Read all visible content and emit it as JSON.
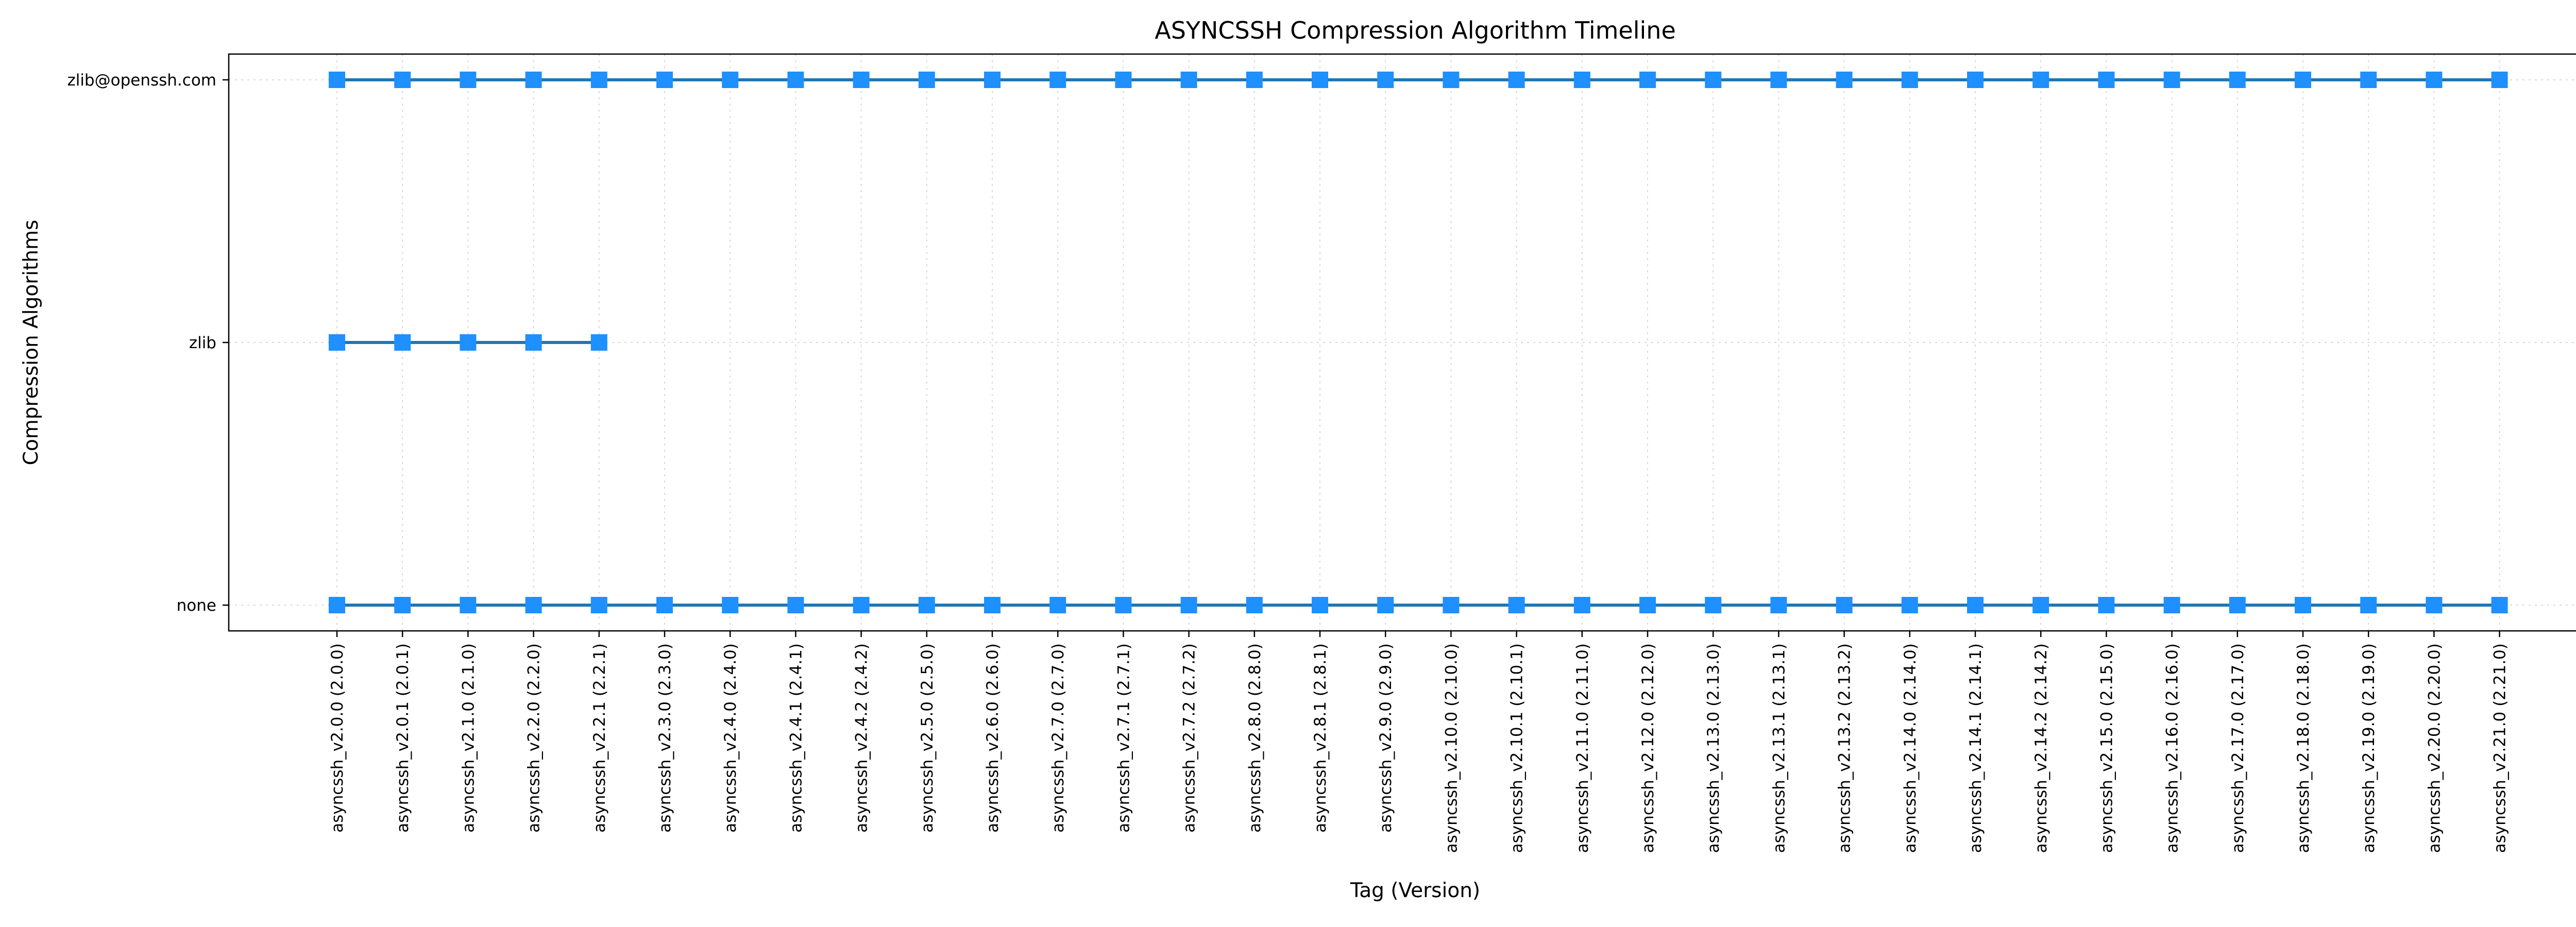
{
  "chart_data": {
    "type": "line",
    "title": "ASYNCSSH Compression Algorithm Timeline",
    "xlabel": "Tag (Version)",
    "ylabel": "Compression Algorithms",
    "grid": true,
    "categories": [
      "asyncssh_v2.0.0 (2.0.0)",
      "asyncssh_v2.0.1 (2.0.1)",
      "asyncssh_v2.1.0 (2.1.0)",
      "asyncssh_v2.2.0 (2.2.0)",
      "asyncssh_v2.2.1 (2.2.1)",
      "asyncssh_v2.3.0 (2.3.0)",
      "asyncssh_v2.4.0 (2.4.0)",
      "asyncssh_v2.4.1 (2.4.1)",
      "asyncssh_v2.4.2 (2.4.2)",
      "asyncssh_v2.5.0 (2.5.0)",
      "asyncssh_v2.6.0 (2.6.0)",
      "asyncssh_v2.7.0 (2.7.0)",
      "asyncssh_v2.7.1 (2.7.1)",
      "asyncssh_v2.7.2 (2.7.2)",
      "asyncssh_v2.8.0 (2.8.0)",
      "asyncssh_v2.8.1 (2.8.1)",
      "asyncssh_v2.9.0 (2.9.0)",
      "asyncssh_v2.10.0 (2.10.0)",
      "asyncssh_v2.10.1 (2.10.1)",
      "asyncssh_v2.11.0 (2.11.0)",
      "asyncssh_v2.12.0 (2.12.0)",
      "asyncssh_v2.13.0 (2.13.0)",
      "asyncssh_v2.13.1 (2.13.1)",
      "asyncssh_v2.13.2 (2.13.2)",
      "asyncssh_v2.14.0 (2.14.0)",
      "asyncssh_v2.14.1 (2.14.1)",
      "asyncssh_v2.14.2 (2.14.2)",
      "asyncssh_v2.15.0 (2.15.0)",
      "asyncssh_v2.16.0 (2.16.0)",
      "asyncssh_v2.17.0 (2.17.0)",
      "asyncssh_v2.18.0 (2.18.0)",
      "asyncssh_v2.19.0 (2.19.0)",
      "asyncssh_v2.20.0 (2.20.0)",
      "asyncssh_v2.21.0 (2.21.0)"
    ],
    "y_categories": [
      "none",
      "zlib",
      "zlib@openssh.com"
    ],
    "series": [
      {
        "y": "zlib@openssh.com",
        "x_start": "asyncssh_v2.0.0 (2.0.0)",
        "x_end": "asyncssh_v2.21.0 (2.21.0)"
      },
      {
        "y": "zlib",
        "x_start": "asyncssh_v2.0.0 (2.0.0)",
        "x_end": "asyncssh_v2.2.1 (2.2.1)"
      },
      {
        "y": "none",
        "x_start": "asyncssh_v2.0.0 (2.0.0)",
        "x_end": "asyncssh_v2.21.0 (2.21.0)"
      }
    ],
    "marker": "square",
    "colors": {
      "line": "#1f77b4",
      "marker": "#1e90ff",
      "grid": "#d9d9d9"
    }
  }
}
